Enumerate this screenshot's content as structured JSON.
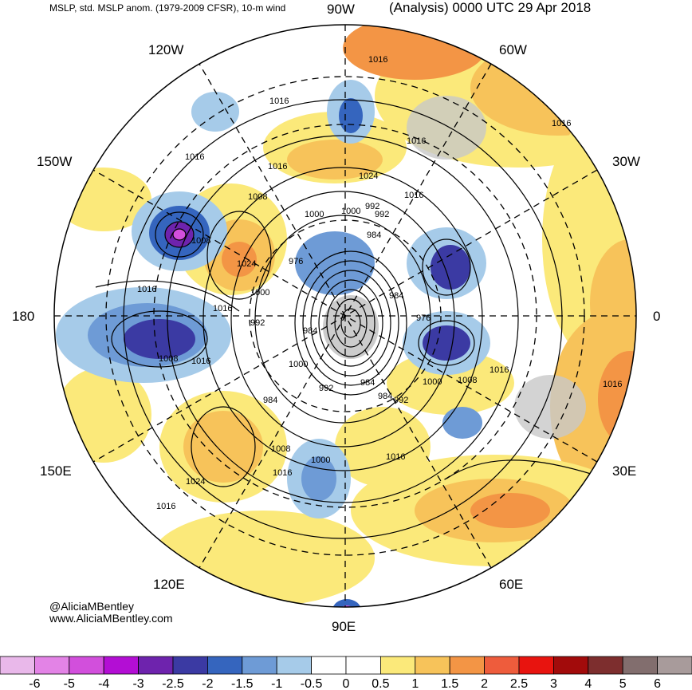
{
  "header": {
    "left_title": "MSLP, std. MSLP anom. (1979-2009 CFSR), 10-m wind",
    "right_title": "(Analysis) 0000 UTC 29 Apr 2018"
  },
  "credit": {
    "handle": "@AliciaMBentley",
    "url": "www.AliciaMBentley.com"
  },
  "longitude_labels": [
    {
      "id": "90w",
      "text": "90W"
    },
    {
      "id": "60w",
      "text": "60W"
    },
    {
      "id": "30w",
      "text": "30W"
    },
    {
      "id": "0",
      "text": "0"
    },
    {
      "id": "30e",
      "text": "30E"
    },
    {
      "id": "60e",
      "text": "60E"
    },
    {
      "id": "90e",
      "text": "90E"
    },
    {
      "id": "120e",
      "text": "120E"
    },
    {
      "id": "150e",
      "text": "150E"
    },
    {
      "id": "180",
      "text": "180"
    },
    {
      "id": "150w",
      "text": "150W"
    },
    {
      "id": "120w",
      "text": "120W"
    }
  ],
  "isobar_labels": [
    "1016",
    "1016",
    "1016",
    "1016",
    "1016",
    "1016",
    "1016",
    "1016",
    "1016",
    "1016",
    "1016",
    "1016",
    "1016",
    "1016",
    "1016",
    "1008",
    "1008",
    "1008",
    "1008",
    "1008",
    "1000",
    "1000",
    "1000",
    "1000",
    "1000",
    "1000",
    "992",
    "992",
    "992",
    "992",
    "992",
    "984",
    "984",
    "984",
    "984",
    "984",
    "984",
    "976",
    "976",
    "1024",
    "1024",
    "1024"
  ],
  "colorbar": {
    "ticks": [
      "-6",
      "-5",
      "-4",
      "-3",
      "-2.5",
      "-2",
      "-1.5",
      "-1",
      "-0.5",
      "0",
      "0.5",
      "1",
      "1.5",
      "2",
      "2.5",
      "3",
      "4",
      "5",
      "6"
    ],
    "colors": [
      "#e9b8ea",
      "#e383e6",
      "#d24fdc",
      "#b30ed4",
      "#6e23ad",
      "#3b3aa3",
      "#3565be",
      "#6e9bd6",
      "#a6cbe9",
      "#ffffff",
      "#ffffff",
      "#fbe97a",
      "#f7c35a",
      "#f39545",
      "#ee5c3c",
      "#e8140f",
      "#a20b0b",
      "#7d2e2e",
      "#826e6e",
      "#a89b9b"
    ]
  }
}
